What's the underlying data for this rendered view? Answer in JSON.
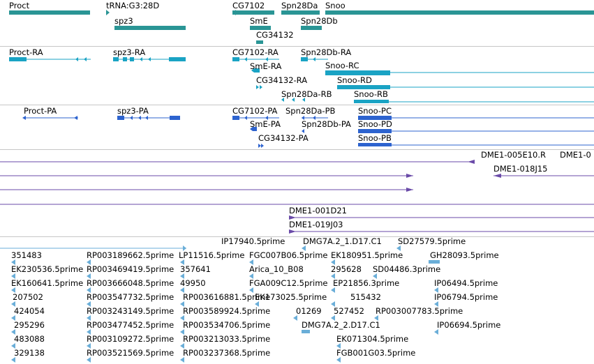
{
  "colors": {
    "gene": "#2a9595",
    "transcript": "#1aa3c4",
    "protein": "#2d63cf",
    "clone": "#6a4aa8",
    "est": "#6aaed8",
    "separator": "#c6c6c6"
  },
  "gene_track": {
    "labels": [
      "Proct",
      "tRNA:G3:28D",
      "spz3",
      "CG7102",
      "Spn28Da",
      "Snoo",
      "SmE",
      "Spn28Db",
      "CG34132"
    ]
  },
  "transcript_track": {
    "labels": [
      "Proct-RA",
      "spz3-RA",
      "CG7102-RA",
      "Spn28Db-RA",
      "SmE-RA",
      "Snoo-RC",
      "CG34132-RA",
      "Snoo-RD",
      "Spn28Da-RB",
      "Snoo-RB"
    ]
  },
  "protein_track": {
    "labels": [
      "Proct-PA",
      "spz3-PA",
      "CG7102-PA",
      "Spn28Da-PB",
      "Snoo-PC",
      "SmE-PA",
      "Spn28Db-PA",
      "Snoo-PD",
      "CG34132-PA",
      "Snoo-PB"
    ]
  },
  "clone_track": {
    "labels": [
      "DME1-005E10.R",
      "DME1-0",
      "DME1-018J15"
    ]
  },
  "clone_track_2": {
    "labels": [
      "DME1-001D21",
      "DME1-019J03"
    ]
  },
  "est_track": {
    "labels": [
      "IP17940.5prime",
      "DMG7A.2_1.D17.C1",
      "SD27579.5prime",
      "351483",
      "RP003189662.5prime",
      "LP11516.5prime",
      "FGC007B06.5prime",
      "EK180951.5prime",
      "GH28093.5prime",
      "EK230536.5prime",
      "RP003469419.5prime",
      "357641",
      "Arica_10_B08",
      "295628",
      "SD04486.3prime",
      "EK160641.5prime",
      "RP003666048.5prime",
      "49950",
      "FGA009C12.5prime",
      "EP21856.3prime",
      "IP06494.5prime",
      "207502",
      "RP003547732.5prime",
      "RP003616881.5prime",
      "EK173025.5prime",
      "515432",
      "IP06794.5prime",
      "424054",
      "RP003243149.5prime",
      "RP003589924.5prime",
      "01269",
      "527452",
      "RP003007783.5prime",
      "295296",
      "RP003477452.5prime",
      "RP003534706.5prime",
      "DMG7A.2_2.D17.C1",
      "IP06694.5prime",
      "483088",
      "RP003109272.5prime",
      "RP003213033.5prime",
      "EK071304.5prime",
      "329138",
      "RP003521569.5prime",
      "RP003237368.5prime",
      "FGB001G03.5prime"
    ]
  }
}
